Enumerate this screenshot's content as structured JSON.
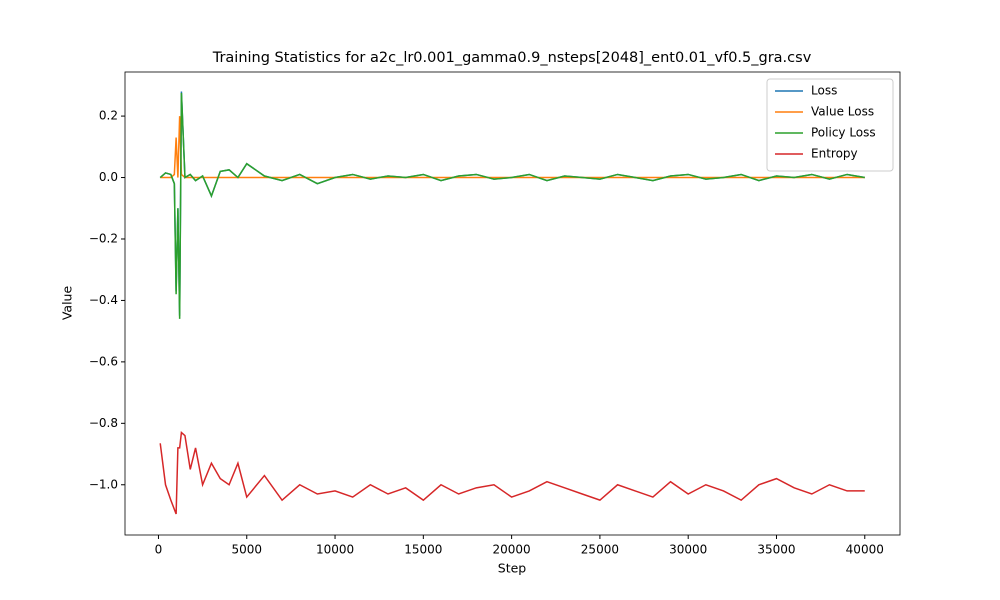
{
  "chart_data": {
    "type": "line",
    "title": "Training Statistics for a2c_lr0.001_gamma0.9_nsteps[2048]_ent0.01_vf0.5_gra.csv",
    "x_label": "Step",
    "y_label": "Value",
    "x": [
      100,
      400,
      700,
      900,
      1000,
      1100,
      1200,
      1300,
      1500,
      1800,
      2100,
      2500,
      3000,
      3500,
      4000,
      4500,
      5000,
      6000,
      7000,
      8000,
      9000,
      10000,
      11000,
      12000,
      13000,
      14000,
      15000,
      16000,
      17000,
      18000,
      19000,
      20000,
      21000,
      22000,
      23000,
      24000,
      25000,
      26000,
      27000,
      28000,
      29000,
      30000,
      31000,
      32000,
      33000,
      34000,
      35000,
      36000,
      37000,
      38000,
      39000,
      40000
    ],
    "series": [
      {
        "name": "Loss",
        "color": "#1f77b4",
        "values": [
          0,
          0.015,
          0.01,
          -0.02,
          -0.37,
          -0.1,
          -0.45,
          0.28,
          0.0,
          0.01,
          -0.01,
          0.005,
          -0.06,
          0.02,
          0.025,
          0.0,
          0.045,
          0.005,
          -0.01,
          0.01,
          -0.02,
          0.0,
          0.01,
          -0.005,
          0.005,
          0.0,
          0.01,
          -0.01,
          0.005,
          0.01,
          -0.005,
          0.0,
          0.01,
          -0.01,
          0.005,
          0.0,
          -0.005,
          0.01,
          0.0,
          -0.01,
          0.005,
          0.01,
          -0.005,
          0.0,
          0.01,
          -0.01,
          0.005,
          0.0,
          0.01,
          -0.005,
          0.01,
          0.0
        ]
      },
      {
        "name": "Value Loss",
        "color": "#ff7f0e",
        "values": [
          0,
          0,
          0,
          0.01,
          0.13,
          0.0,
          0.2,
          0.01,
          0,
          0,
          0,
          0,
          0,
          0,
          0,
          0,
          0,
          0,
          0,
          0,
          0,
          0,
          0,
          0,
          0,
          0,
          0,
          0,
          0,
          0,
          0,
          0,
          0,
          0,
          0,
          0,
          0,
          0,
          0,
          0,
          0,
          0,
          0,
          0,
          0,
          0,
          0,
          0,
          0,
          0,
          0,
          0
        ]
      },
      {
        "name": "Policy Loss",
        "color": "#2ca02c",
        "values": [
          0,
          0.015,
          0.01,
          -0.02,
          -0.38,
          -0.1,
          -0.46,
          0.275,
          0.0,
          0.01,
          -0.01,
          0.005,
          -0.06,
          0.02,
          0.025,
          0.0,
          0.045,
          0.005,
          -0.01,
          0.01,
          -0.02,
          0.0,
          0.01,
          -0.005,
          0.005,
          0.0,
          0.01,
          -0.01,
          0.005,
          0.01,
          -0.005,
          0.0,
          0.01,
          -0.01,
          0.005,
          0.0,
          -0.005,
          0.01,
          0.0,
          -0.01,
          0.005,
          0.01,
          -0.005,
          0.0,
          0.01,
          -0.01,
          0.005,
          0.0,
          0.01,
          -0.005,
          0.01,
          0.0
        ]
      },
      {
        "name": "Entropy",
        "color": "#d62728",
        "values": [
          -0.865,
          -1.0,
          -1.05,
          -1.08,
          -1.095,
          -0.88,
          -0.88,
          -0.83,
          -0.84,
          -0.95,
          -0.88,
          -1.0,
          -0.93,
          -0.98,
          -1.0,
          -0.93,
          -1.04,
          -0.97,
          -1.05,
          -1.0,
          -1.03,
          -1.02,
          -1.04,
          -1.0,
          -1.03,
          -1.01,
          -1.05,
          -1.0,
          -1.03,
          -1.01,
          -1.0,
          -1.04,
          -1.02,
          -0.99,
          -1.01,
          -1.03,
          -1.05,
          -1.0,
          -1.02,
          -1.04,
          -0.99,
          -1.03,
          -1.0,
          -1.02,
          -1.05,
          -1.0,
          -0.98,
          -1.01,
          -1.03,
          -1.0,
          -1.02,
          -1.02
        ]
      }
    ],
    "xlim": [
      -1895,
      41995
    ],
    "ylim": [
      -1.1635,
      0.3435
    ],
    "xticks": [
      0,
      5000,
      10000,
      15000,
      20000,
      25000,
      30000,
      35000,
      40000
    ],
    "yticks": [
      {
        "value": -1.0,
        "label": "−1.0"
      },
      {
        "value": -0.8,
        "label": "−0.8"
      },
      {
        "value": -0.6,
        "label": "−0.6"
      },
      {
        "value": -0.4,
        "label": "−0.4"
      },
      {
        "value": -0.2,
        "label": "−0.2"
      },
      {
        "value": 0.0,
        "label": "0.0"
      },
      {
        "value": 0.2,
        "label": "0.2"
      }
    ],
    "legend": "upper right"
  }
}
